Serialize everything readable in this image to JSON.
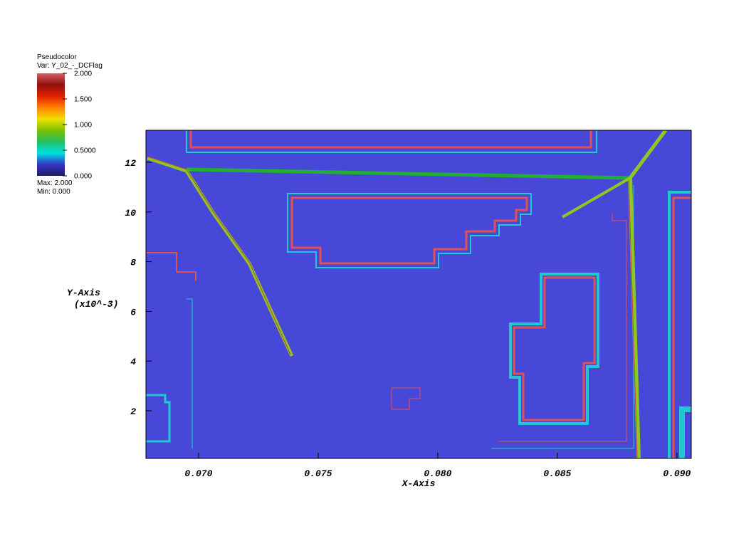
{
  "chart_data": {
    "type": "pseudocolor",
    "legend": {
      "title": "Pseudocolor",
      "variable": "Var: Y_02_-_DCFlag",
      "max_label": "Max: 2.000",
      "min_label": "Min: 0.000",
      "lim": [
        0,
        2
      ],
      "ticks": [
        {
          "value": 2,
          "label": "2.000"
        },
        {
          "value": 1.5,
          "label": "1.500"
        },
        {
          "value": 1,
          "label": "1.000"
        },
        {
          "value": 0.5,
          "label": "0.5000"
        },
        {
          "value": 0,
          "label": "0.000"
        }
      ],
      "colormap": [
        "#1a1a5e",
        "#3535c8",
        "#00e0e0",
        "#22c060",
        "#80c000",
        "#f0e000",
        "#ff8000",
        "#e02000",
        "#901010",
        "#d86060"
      ]
    },
    "xlabel": "X-Axis",
    "ylabel": "Y-Axis",
    "ylabel_units": "(x10^-3)",
    "xlim": [
      0.0678,
      0.0906
    ],
    "xticks": [
      {
        "value": 0.07,
        "label": "0.070"
      },
      {
        "value": 0.075,
        "label": "0.075"
      },
      {
        "value": 0.08,
        "label": "0.080"
      },
      {
        "value": 0.085,
        "label": "0.085"
      },
      {
        "value": 0.09,
        "label": "0.090"
      }
    ],
    "ylim": [
      0.08,
      13.29
    ],
    "yticks": [
      2,
      4,
      6,
      8,
      10,
      12
    ],
    "field_color": "#4848d8"
  }
}
